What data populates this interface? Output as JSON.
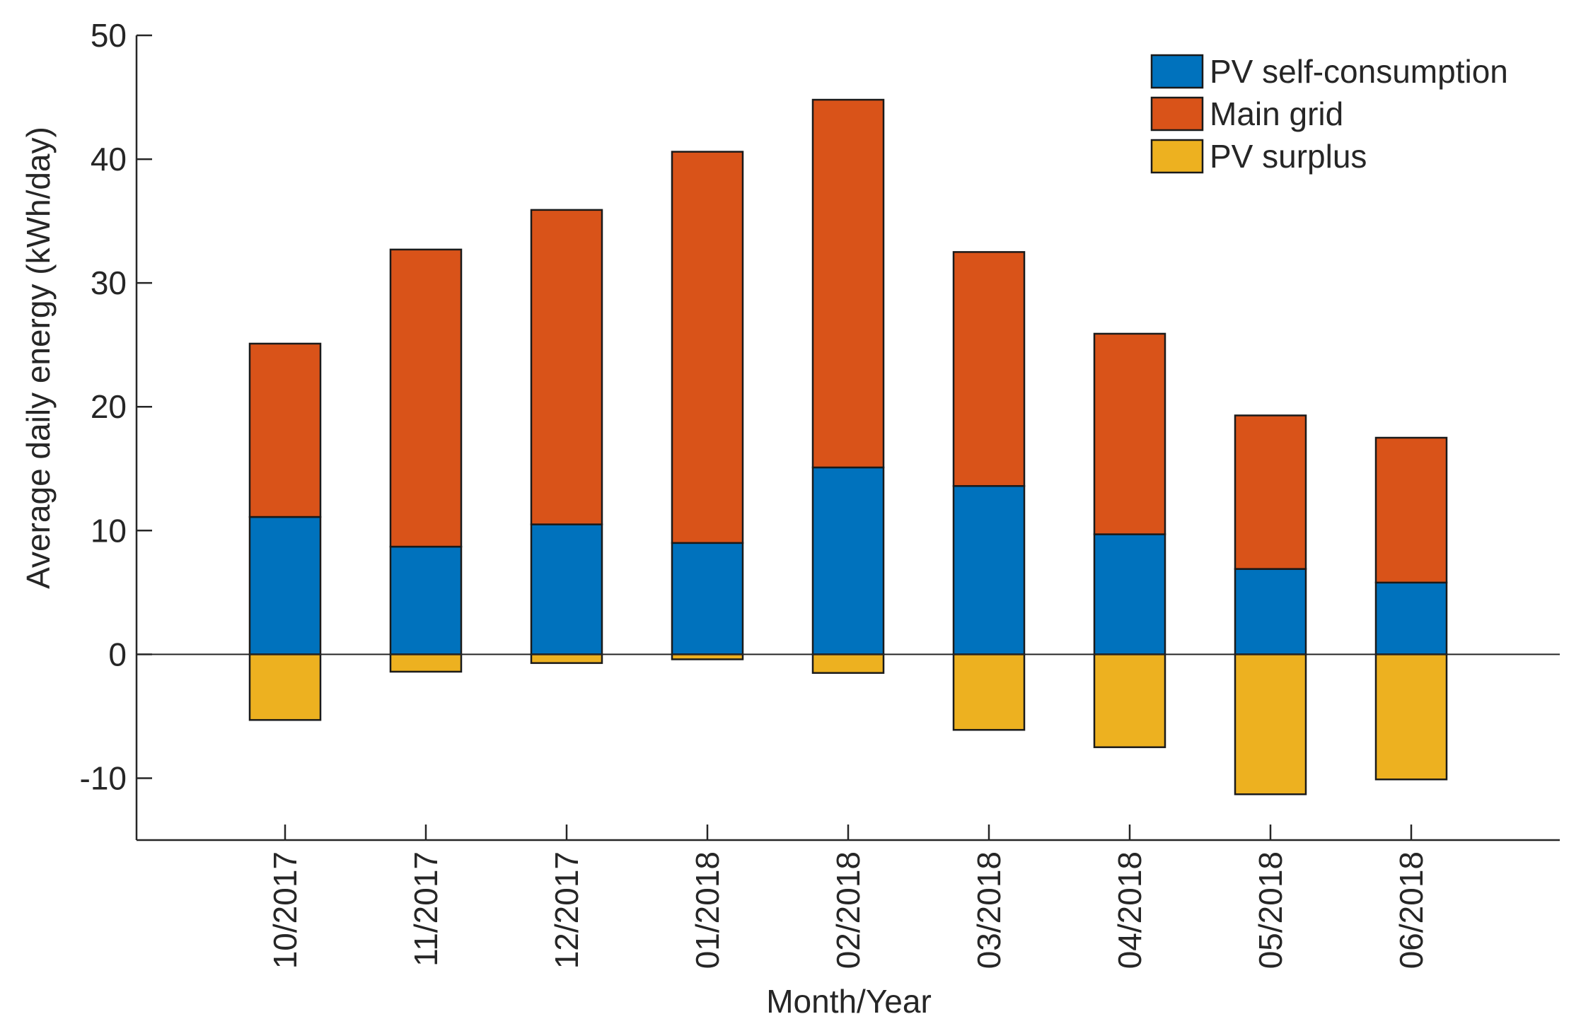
{
  "chart_data": {
    "type": "bar",
    "stacked": true,
    "title": "",
    "xlabel": "Month/Year",
    "ylabel": "Average daily energy (kWh/day)",
    "ylim": [
      -15,
      50
    ],
    "yticks": [
      -10,
      0,
      10,
      20,
      30,
      40,
      50
    ],
    "categories": [
      "10/2017",
      "11/2017",
      "12/2017",
      "01/2018",
      "02/2018",
      "03/2018",
      "04/2018",
      "05/2018",
      "06/2018"
    ],
    "series": [
      {
        "name": "PV self-consumption",
        "color": "#0072BD",
        "values": [
          11.1,
          8.7,
          10.5,
          9.0,
          15.1,
          13.6,
          9.7,
          6.9,
          5.8
        ]
      },
      {
        "name": "Main grid",
        "color": "#D95319",
        "values": [
          14.0,
          24.0,
          25.4,
          31.6,
          29.7,
          18.9,
          16.2,
          12.4,
          11.7
        ]
      },
      {
        "name": "PV surplus",
        "color": "#EDB120",
        "values": [
          -5.3,
          -1.4,
          -0.7,
          -0.4,
          -1.5,
          -6.1,
          -7.5,
          -11.3,
          -10.1
        ]
      }
    ],
    "legend_position": "top-right",
    "grid": false
  }
}
